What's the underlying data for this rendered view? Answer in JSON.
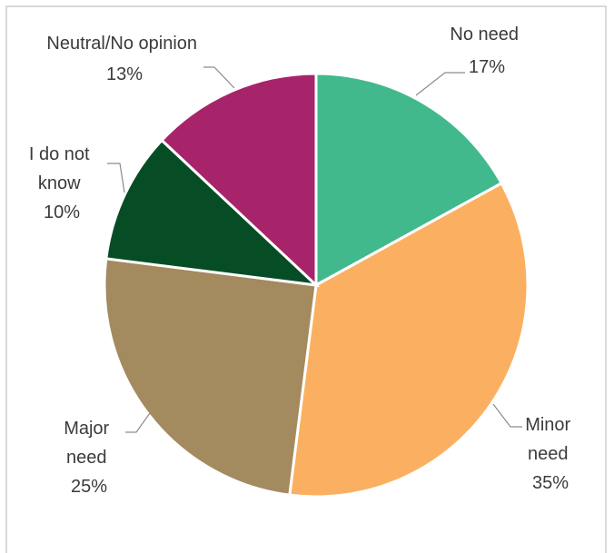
{
  "chart_data": {
    "type": "pie",
    "title": "",
    "slices": [
      {
        "label_lines": [
          "No need"
        ],
        "pct_text": "17%",
        "value": 17,
        "color": "#42b98c"
      },
      {
        "label_lines": [
          "Minor",
          "need"
        ],
        "pct_text": "35%",
        "value": 35,
        "color": "#fbb061"
      },
      {
        "label_lines": [
          "Major",
          "need"
        ],
        "pct_text": "25%",
        "value": 25,
        "color": "#a48a5f"
      },
      {
        "label_lines": [
          "I do not",
          "know"
        ],
        "pct_text": "10%",
        "value": 10,
        "color": "#064d26"
      },
      {
        "label_lines": [
          "Neutral/No opinion"
        ],
        "pct_text": "13%",
        "value": 13,
        "color": "#a7246b"
      }
    ]
  }
}
